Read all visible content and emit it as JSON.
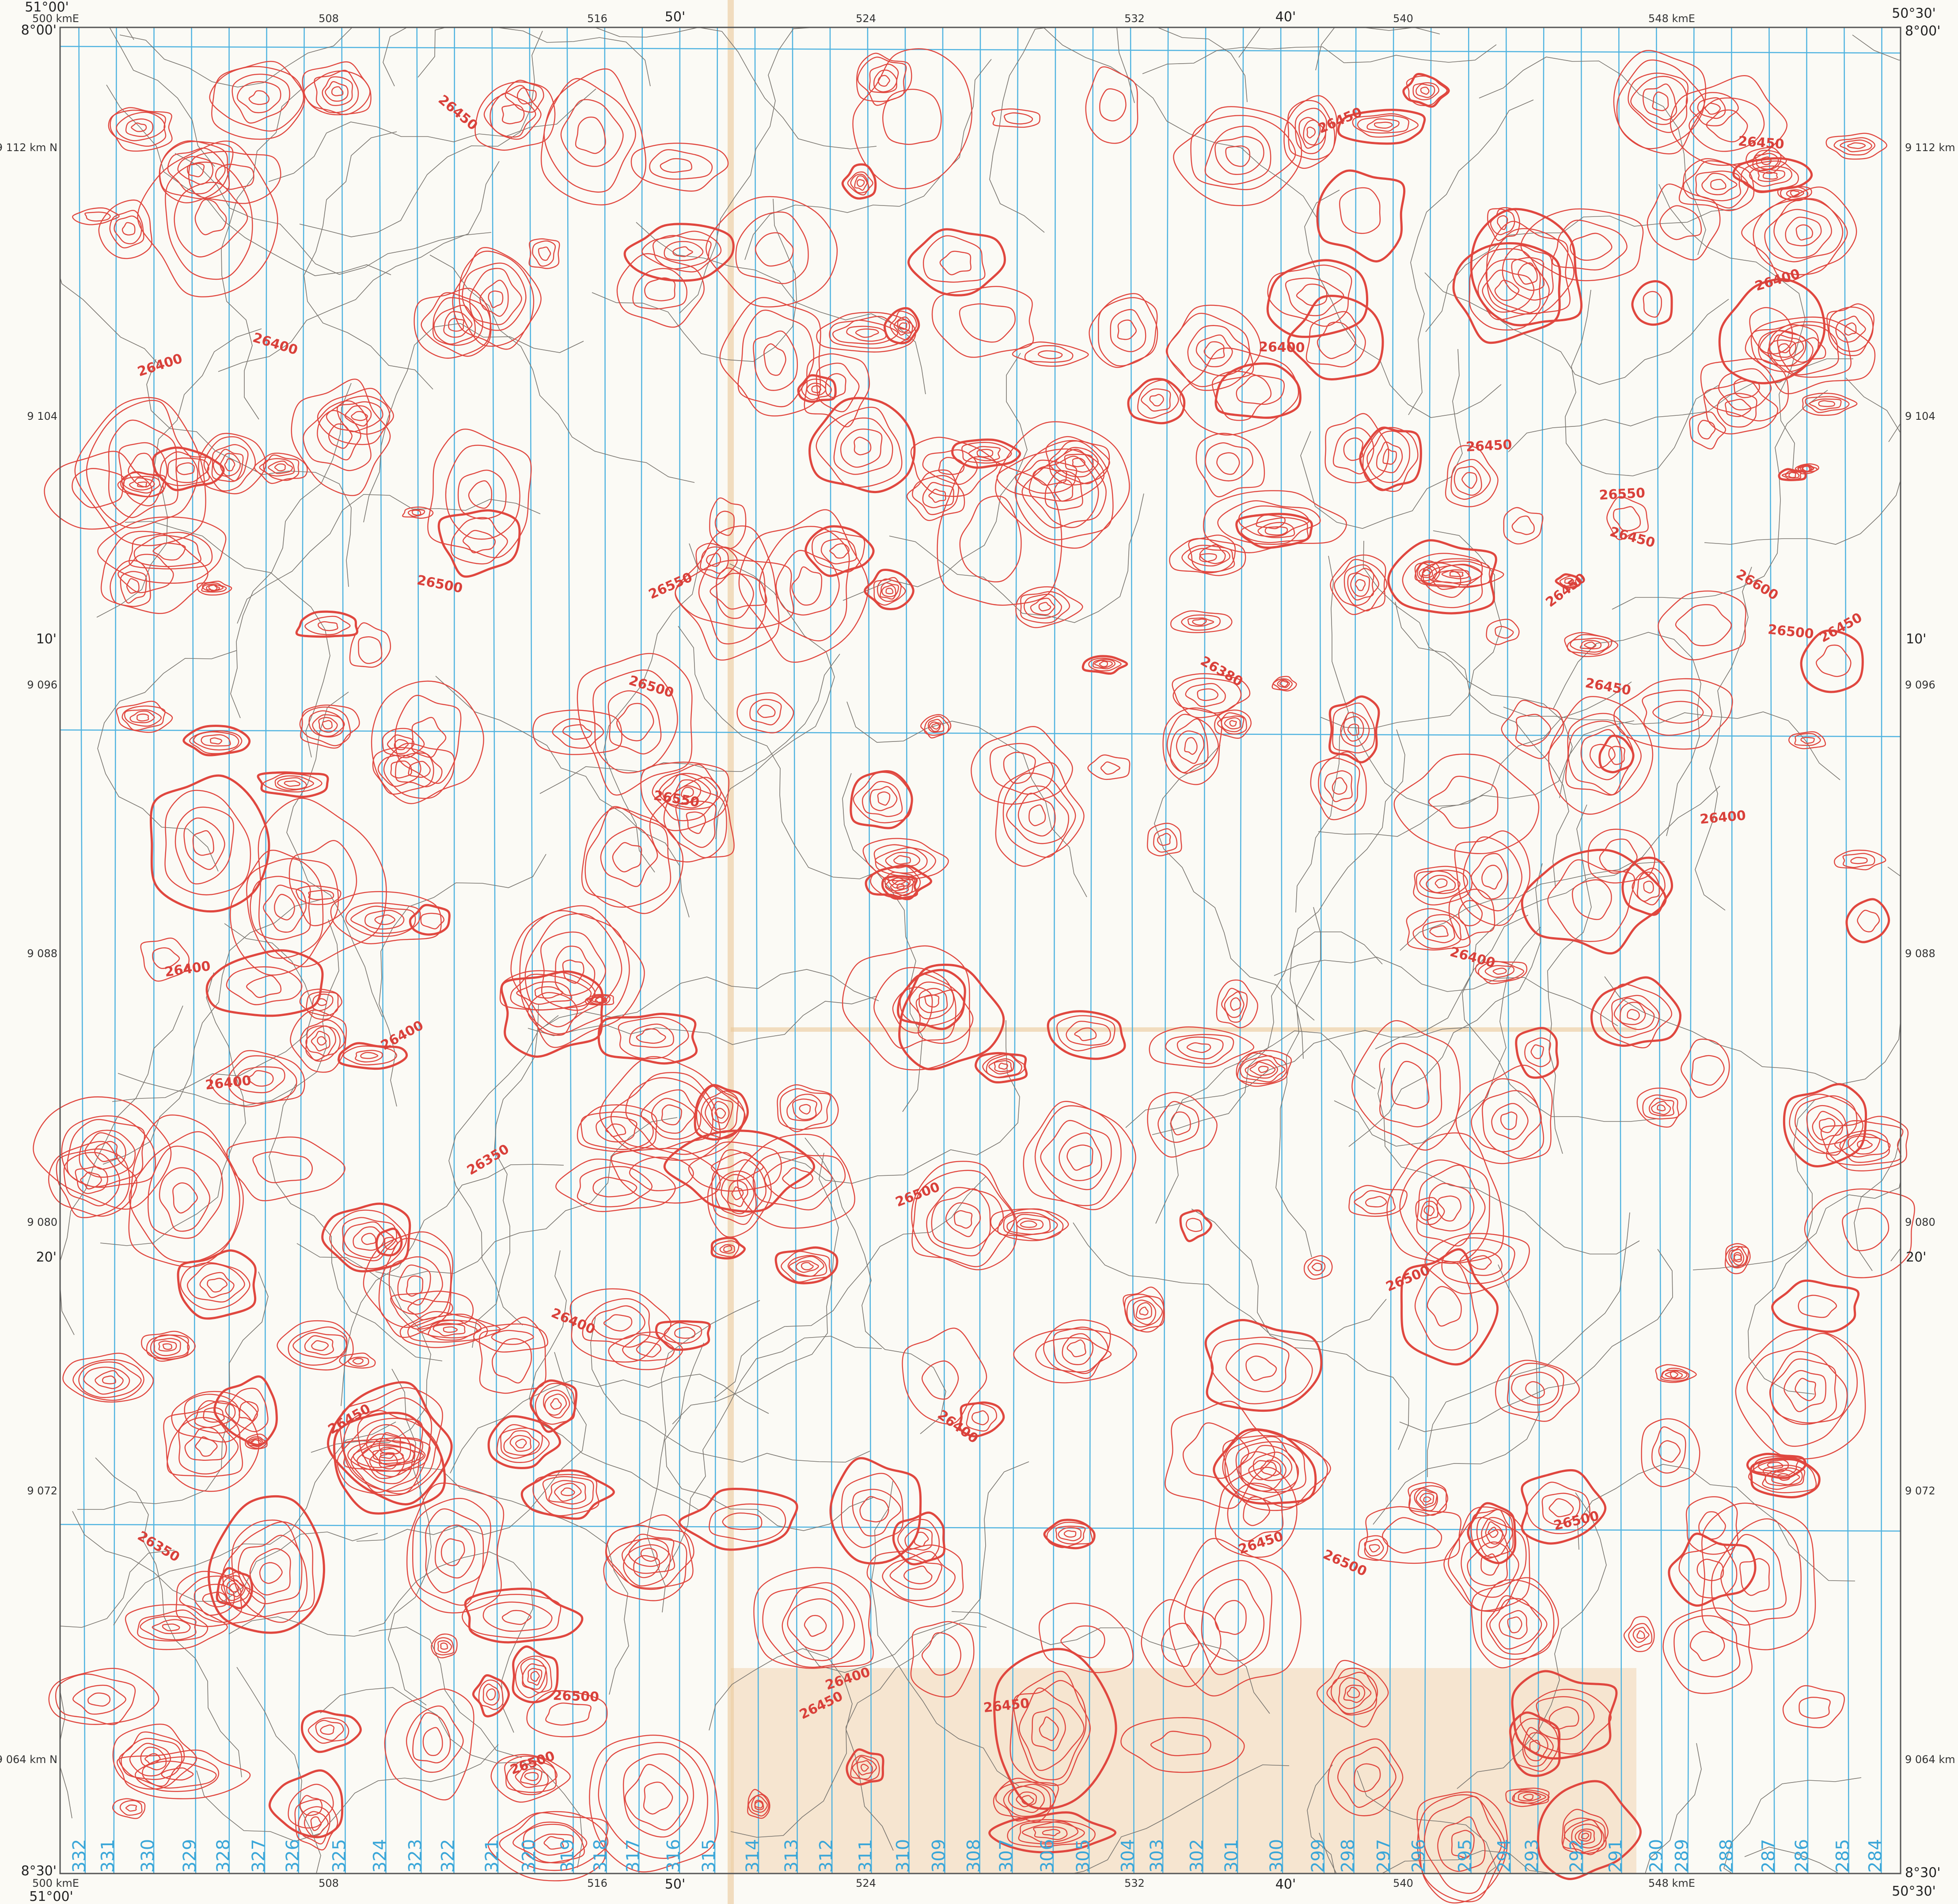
{
  "map": {
    "corners": {
      "top_left": {
        "lon": "51°00'",
        "lat": "8°00'",
        "easting": "500 kmE"
      },
      "top_right": {
        "lon": "50°30'",
        "lat": "8°00'"
      },
      "bottom_left": {
        "lon": "51°00'",
        "lat": "8°30'",
        "easting": "500 kmE"
      },
      "bottom_right": {
        "lon": "50°30'",
        "lat": "8°30'"
      }
    },
    "eastings_top": [
      "508",
      "516",
      "524",
      "532",
      "540",
      "548 kmE"
    ],
    "eastings_bottom": [
      "508",
      "516",
      "524",
      "532",
      "540",
      "548 kmE"
    ],
    "minutes_top": [
      "50'",
      "40'"
    ],
    "minutes_bottom": [
      "50'",
      "40'"
    ],
    "northings_left": [
      "9 112 km N",
      "9 104",
      "9 096",
      "9 088",
      "9 080",
      "9 072",
      "9 064 km N"
    ],
    "northings_right": [
      "9 112 km N",
      "9 104",
      "9 096",
      "9 088",
      "9 080",
      "9 072",
      "9 064 km N"
    ],
    "minutes_left": [
      "10'",
      "20'"
    ],
    "minutes_right": [
      "10'",
      "20'"
    ],
    "contour_labels": [
      "26550",
      "26600",
      "26550",
      "26500",
      "26550",
      "26450",
      "26500",
      "26450",
      "26500",
      "26450",
      "26450",
      "26400",
      "26450",
      "26400",
      "26450",
      "26400",
      "26400",
      "26500",
      "26400",
      "26400",
      "26400",
      "26500",
      "26450",
      "26450",
      "26400",
      "26400",
      "26350",
      "26450",
      "26500",
      "26400",
      "26450",
      "26500",
      "26380",
      "26400",
      "26450",
      "26500",
      "26500",
      "26450",
      "26350",
      "26400"
    ],
    "flight_lines": [
      "332",
      "331",
      "330",
      "329",
      "328",
      "327",
      "326",
      "325",
      "324",
      "323",
      "322",
      "321",
      "320",
      "319",
      "318",
      "317",
      "316",
      "315",
      "314",
      "313",
      "312",
      "311",
      "310",
      "309",
      "308",
      "307",
      "306",
      "305",
      "304",
      "303",
      "302",
      "301",
      "300",
      "299",
      "298",
      "297",
      "296",
      "295",
      "294",
      "293",
      "292",
      "291",
      "290",
      "289",
      "288",
      "287",
      "286",
      "285",
      "284"
    ]
  }
}
